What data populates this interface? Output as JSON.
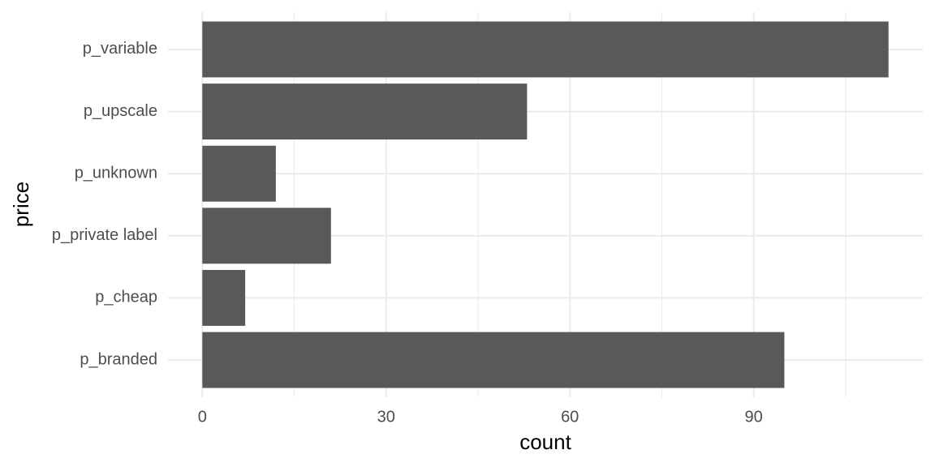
{
  "chart_data": {
    "type": "bar",
    "orientation": "horizontal",
    "x_label": "count",
    "y_label": "price",
    "categories": [
      "p_branded",
      "p_cheap",
      "p_private label",
      "p_unknown",
      "p_upscale",
      "p_variable"
    ],
    "values": [
      95,
      7,
      21,
      12,
      53,
      112
    ],
    "color": "#595959",
    "xlim": [
      -5.6,
      117.6
    ],
    "xticks": [
      0,
      30,
      60,
      90
    ],
    "xminorticks": [
      15,
      45,
      75,
      105
    ],
    "grid": true
  }
}
